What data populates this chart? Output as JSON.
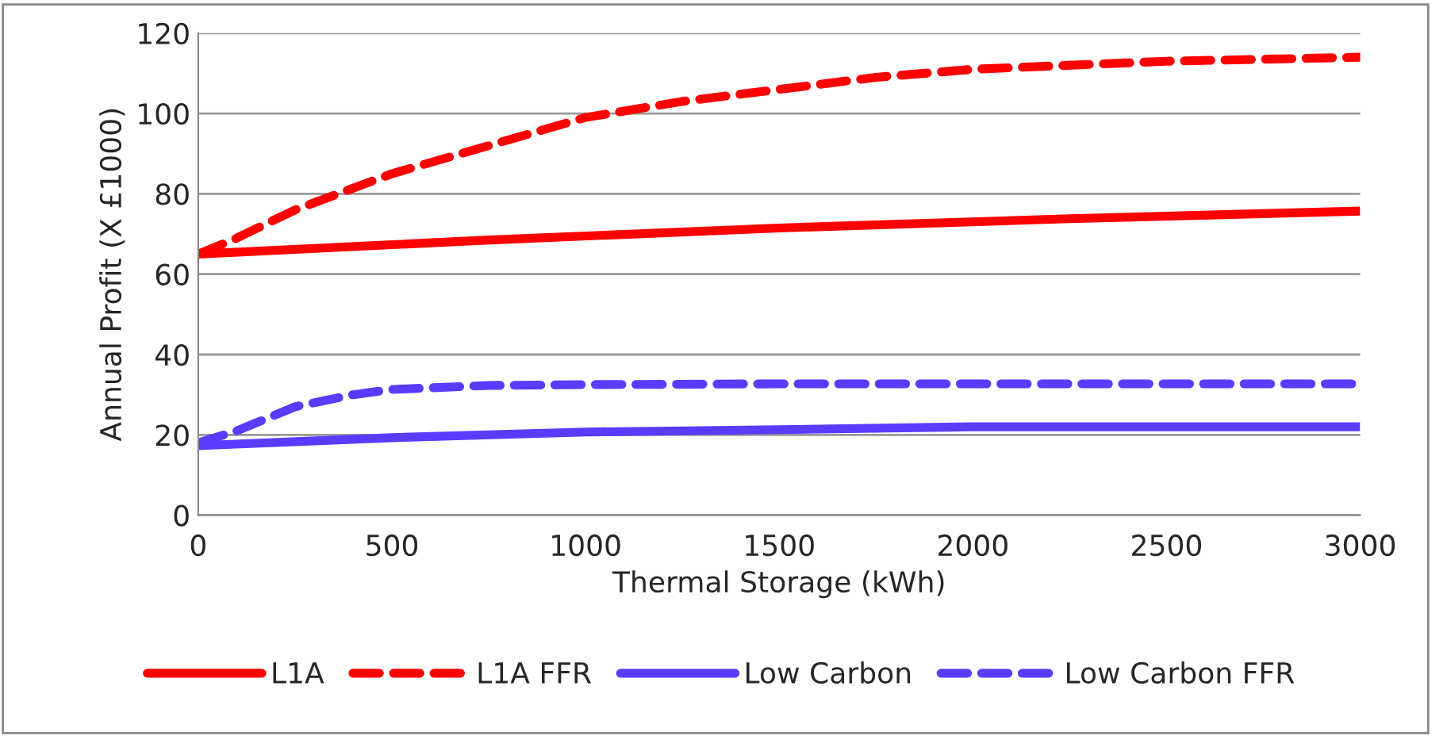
{
  "chart_data": {
    "type": "line",
    "xlabel": "Thermal Storage (kWh)",
    "ylabel": "Annual Profit (X £1000)",
    "xlim": [
      0,
      3000
    ],
    "xticks": [
      0,
      500,
      1000,
      1500,
      2000,
      2500,
      3000
    ],
    "ylim": [
      0,
      120
    ],
    "yticks": [
      0,
      20,
      40,
      60,
      80,
      100,
      120
    ],
    "grid": "y",
    "legend": "bottom",
    "marker": "none",
    "series": [
      {
        "name": "L1A",
        "color": "#ff0000",
        "line_style": "solid",
        "x": [
          0,
          750,
          1500,
          2250,
          3000
        ],
        "values": [
          65,
          68.5,
          71.5,
          73.8,
          75.7
        ]
      },
      {
        "name": "L1A FFR",
        "color": "#ff0000",
        "line_style": "dashed",
        "x": [
          0,
          100,
          250,
          500,
          750,
          1000,
          1250,
          1500,
          1750,
          2000,
          2500,
          3000
        ],
        "values": [
          65,
          69,
          76,
          85,
          92,
          99,
          103,
          106,
          109,
          111,
          113,
          114
        ]
      },
      {
        "name": "Low Carbon",
        "color": "#5b3bff",
        "line_style": "solid",
        "x": [
          0,
          500,
          1000,
          1500,
          2000,
          3000
        ],
        "values": [
          17.3,
          19.3,
          20.7,
          21.3,
          22,
          22
        ]
      },
      {
        "name": "Low Carbon FFR",
        "color": "#5b3bff",
        "line_style": "dashed",
        "x": [
          0,
          100,
          250,
          400,
          500,
          750,
          1000,
          1500,
          3000
        ],
        "values": [
          18,
          21,
          27,
          30,
          31.3,
          32.3,
          32.5,
          32.7,
          32.7
        ]
      }
    ]
  }
}
